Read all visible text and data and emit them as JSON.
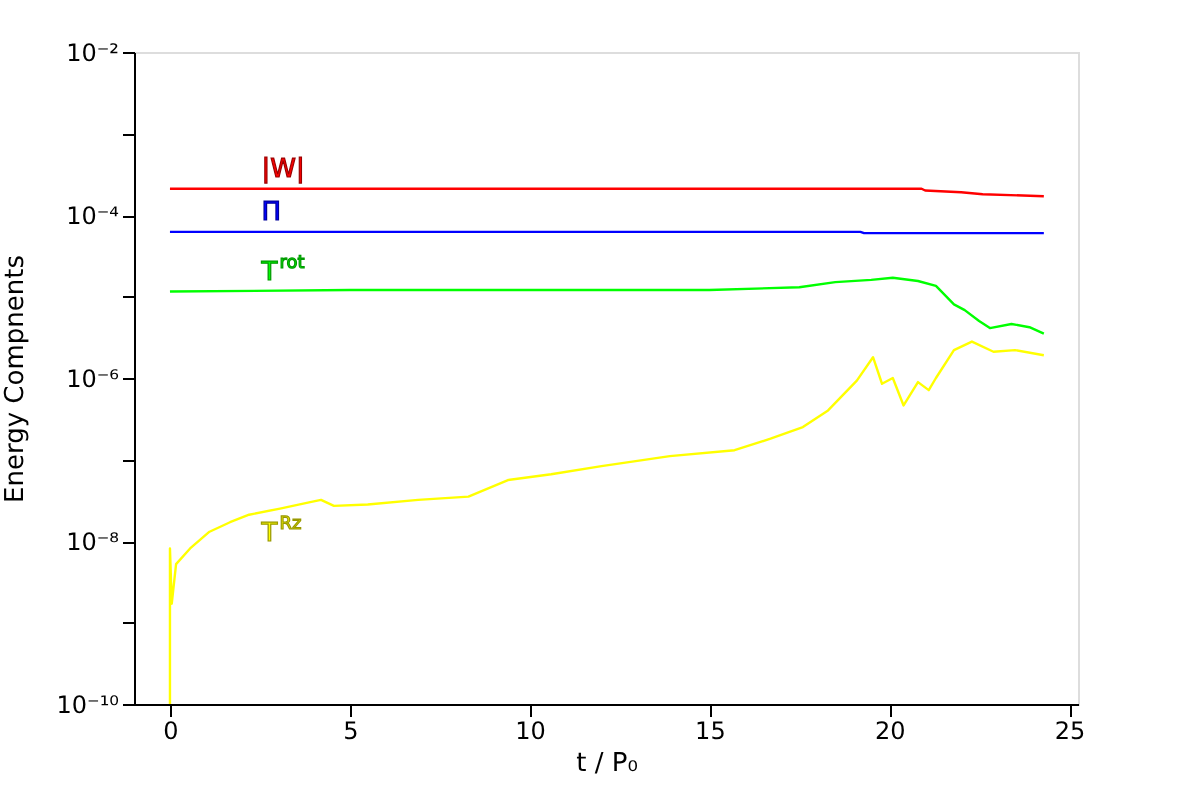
{
  "chart_data": {
    "type": "line",
    "xlabel": "t / P₀",
    "ylabel": "Energy Compnents",
    "xlim": [
      -1,
      25.25
    ],
    "xticks": [
      0,
      5,
      10,
      15,
      20,
      25
    ],
    "ylim": [
      1e-10,
      0.01
    ],
    "log": "y",
    "yticks": [
      {
        "value": 1e-10,
        "label": "10⁻¹⁰"
      },
      {
        "value": 1e-09,
        "label": null
      },
      {
        "value": 1e-08,
        "label": "10⁻⁸"
      },
      {
        "value": 1e-07,
        "label": null
      },
      {
        "value": 1e-06,
        "label": "10⁻⁶"
      },
      {
        "value": 1e-05,
        "label": null
      },
      {
        "value": 0.0001,
        "label": "10⁻⁴"
      },
      {
        "value": 0.001,
        "label": null
      },
      {
        "value": 0.01,
        "label": "10⁻²"
      }
    ],
    "grid": false,
    "legend": false,
    "marker": "none",
    "line_style": "solid",
    "series": [
      {
        "name": "|W|",
        "color": "#ff0000",
        "x": [
          0,
          20.9,
          21,
          22,
          22.6,
          24.3
        ],
        "values": [
          0.00021,
          0.00021,
          0.0002,
          0.00019,
          0.00018,
          0.00017
        ]
      },
      {
        "name": "Π",
        "color": "#0000ff",
        "x": [
          0,
          19.2,
          19.3,
          24.3
        ],
        "values": [
          6.2e-05,
          6.2e-05,
          6e-05,
          6e-05
        ]
      },
      {
        "name": "T$^{rot}$",
        "color": "#00ff00",
        "x": [
          0,
          5,
          10,
          15,
          17.5,
          18.5,
          19.5,
          20.1,
          20.8,
          21.3,
          21.8,
          22.1,
          22.5,
          22.8,
          23.4,
          23.9,
          24.3
        ],
        "values": [
          1.15e-05,
          1.2e-05,
          1.2e-05,
          1.2e-05,
          1.3e-05,
          1.5e-05,
          1.6e-05,
          1.7e-05,
          1.55e-05,
          1.35e-05,
          8e-06,
          6.8e-06,
          5e-06,
          4.1e-06,
          4.6e-06,
          4.2e-06,
          3.5e-06
        ]
      },
      {
        "name": "T$^{Rz}$",
        "color": "#ffff00",
        "x": [
          0,
          0,
          0.05,
          0.17,
          0.56,
          1.1,
          1.67,
          2.2,
          3.06,
          3.9,
          4.2,
          4.56,
          5.5,
          6.9,
          8.3,
          9.4,
          10.6,
          12,
          13.9,
          15.7,
          16.7,
          17.6,
          18.3,
          19.1,
          19.55,
          19.8,
          20.1,
          20.4,
          20.8,
          21.1,
          21.3,
          21.8,
          22.3,
          22.9,
          23.5,
          24.3
        ],
        "values": [
          1e-10,
          8.1e-09,
          1.7e-09,
          5.2e-09,
          8.1e-09,
          1.3e-08,
          1.7e-08,
          2.1e-08,
          2.5e-08,
          3e-08,
          3.2e-08,
          2.7e-08,
          2.8e-08,
          3.2e-08,
          3.5e-08,
          5.6e-08,
          6.6e-08,
          8.3e-08,
          1.1e-07,
          1.3e-07,
          1.8e-07,
          2.5e-07,
          4e-07,
          9.3e-07,
          1.8e-06,
          8.5e-07,
          1e-06,
          4.6e-07,
          8.9e-07,
          7.1e-07,
          1e-06,
          2.2e-06,
          2.8e-06,
          2.1e-06,
          2.2e-06,
          1.9e-06
        ]
      }
    ]
  }
}
